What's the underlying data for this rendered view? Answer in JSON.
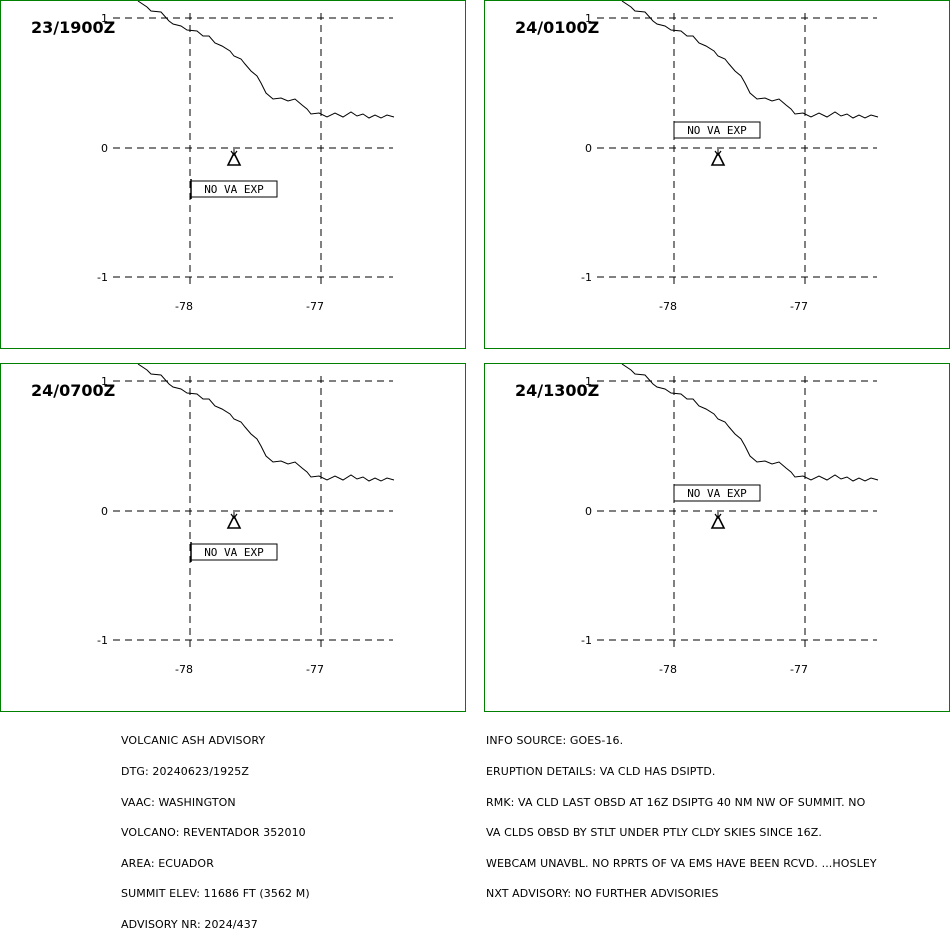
{
  "panels": [
    {
      "time_label": "23/1900Z",
      "status_label": "NO VA EXP",
      "box_pos": "below"
    },
    {
      "time_label": "24/0100Z",
      "status_label": "NO VA EXP",
      "box_pos": "above"
    },
    {
      "time_label": "24/0700Z",
      "status_label": "NO VA EXP",
      "box_pos": "below"
    },
    {
      "time_label": "24/1300Z",
      "status_label": "NO VA EXP",
      "box_pos": "above"
    }
  ],
  "map": {
    "lat_ticks": [
      "1",
      "0",
      "-1"
    ],
    "lon_ticks": [
      "-78",
      "-77"
    ],
    "frame_color": "#008000"
  },
  "advisory_left": [
    "VOLCANIC ASH ADVISORY",
    "DTG: 20240623/1925Z",
    "VAAC: WASHINGTON",
    "VOLCANO: REVENTADOR 352010",
    "AREA: ECUADOR",
    "SUMMIT ELEV: 11686 FT (3562 M)",
    "ADVISORY NR: 2024/437"
  ],
  "advisory_right": [
    "INFO SOURCE: GOES-16.",
    "ERUPTION DETAILS: VA CLD HAS DSIPTD.",
    "RMK: VA CLD LAST OBSD AT 16Z DSIPTG 40 NM NW OF SUMMIT. NO",
    "VA CLDS OBSD BY STLT UNDER PTLY CLDY SKIES SINCE 16Z.",
    "WEBCAM UNAVBL. NO RPRTS OF VA EMS HAVE BEEN RCVD. ...HOSLEY",
    "NXT ADVISORY: NO FURTHER ADVISORIES"
  ]
}
